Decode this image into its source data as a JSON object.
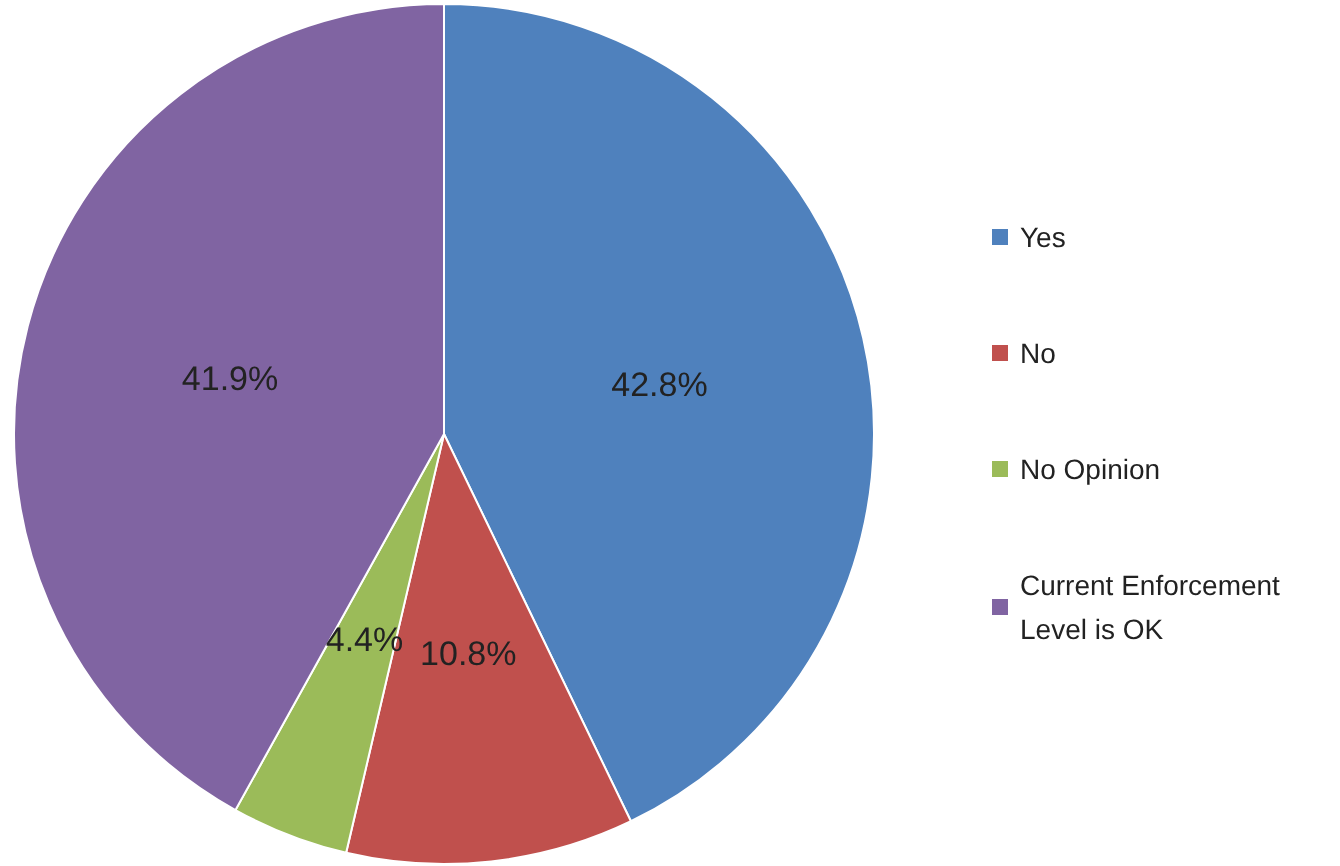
{
  "chart_data": {
    "type": "pie",
    "categories": [
      "Yes",
      "No",
      "No Opinion",
      "Current Enforcement Level is OK"
    ],
    "values": [
      42.8,
      10.8,
      4.4,
      41.9
    ],
    "colors": [
      "#4f81bd",
      "#c0504d",
      "#9bbb59",
      "#8064a2"
    ],
    "value_labels": [
      "42.8%",
      "10.8%",
      "4.4%",
      "41.9%"
    ],
    "legend": "right"
  }
}
